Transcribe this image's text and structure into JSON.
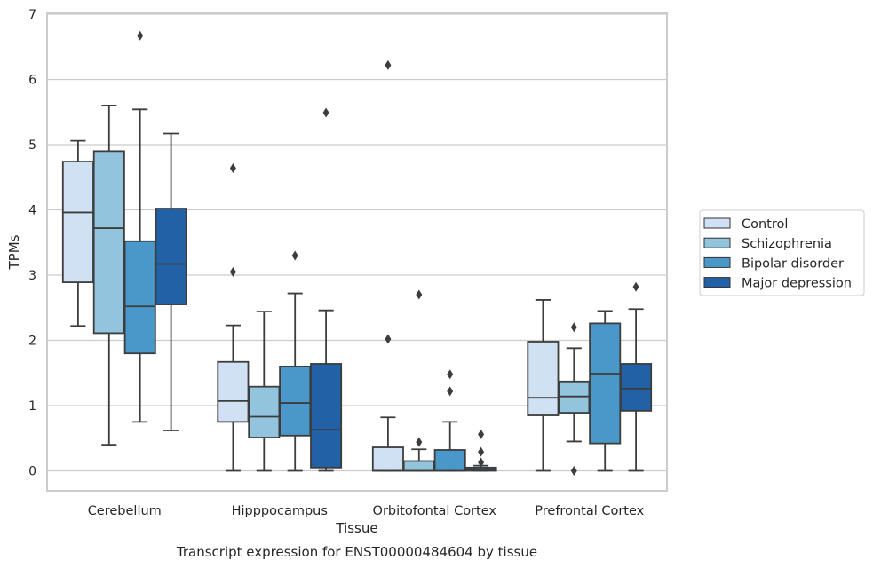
{
  "chart_data": {
    "type": "box",
    "caption": "Transcript expression for ENST00000484604 by tissue",
    "xlabel": "Tissue",
    "ylabel": "TPMs",
    "ylim": [
      -0.3,
      7
    ],
    "yticks": [
      "0",
      "1",
      "2",
      "3",
      "4",
      "5",
      "6",
      "7"
    ],
    "grid": "horizontal",
    "legend_position": "right",
    "categories": [
      "Cerebellum",
      "Hipppocampus",
      "Orbitofontal Cortex",
      "Prefrontal Cortex"
    ],
    "series": [
      {
        "name": "Control",
        "color": "#cfe1f2",
        "boxes": [
          {
            "whisker_low": 2.22,
            "q1": 2.89,
            "median": 3.96,
            "q3": 4.74,
            "whisker_high": 5.06,
            "outliers": []
          },
          {
            "whisker_low": 0.0,
            "q1": 0.75,
            "median": 1.07,
            "q3": 1.67,
            "whisker_high": 2.23,
            "outliers": [
              3.05,
              4.64
            ]
          },
          {
            "whisker_low": 0.0,
            "q1": 0.0,
            "median": 0.0,
            "q3": 0.36,
            "whisker_high": 0.82,
            "outliers": [
              2.02,
              6.22
            ]
          },
          {
            "whisker_low": 0.0,
            "q1": 0.85,
            "median": 1.12,
            "q3": 1.98,
            "whisker_high": 2.62,
            "outliers": []
          }
        ]
      },
      {
        "name": "Schizophrenia",
        "color": "#93c4de",
        "boxes": [
          {
            "whisker_low": 0.4,
            "q1": 2.11,
            "median": 3.72,
            "q3": 4.9,
            "whisker_high": 5.6,
            "outliers": []
          },
          {
            "whisker_low": 0.0,
            "q1": 0.51,
            "median": 0.83,
            "q3": 1.29,
            "whisker_high": 2.44,
            "outliers": []
          },
          {
            "whisker_low": 0.0,
            "q1": 0.0,
            "median": 0.0,
            "q3": 0.15,
            "whisker_high": 0.33,
            "outliers": [
              0.44,
              2.7
            ]
          },
          {
            "whisker_low": 0.45,
            "q1": 0.89,
            "median": 1.14,
            "q3": 1.37,
            "whisker_high": 1.88,
            "outliers": [
              0.0,
              2.2
            ]
          }
        ]
      },
      {
        "name": "Bipolar disorder",
        "color": "#4a98c9",
        "boxes": [
          {
            "whisker_low": 0.75,
            "q1": 1.8,
            "median": 2.52,
            "q3": 3.52,
            "whisker_high": 5.54,
            "outliers": [
              6.67
            ]
          },
          {
            "whisker_low": 0.0,
            "q1": 0.54,
            "median": 1.04,
            "q3": 1.6,
            "whisker_high": 2.72,
            "outliers": [
              3.3
            ]
          },
          {
            "whisker_low": 0.0,
            "q1": 0.0,
            "median": 0.0,
            "q3": 0.32,
            "whisker_high": 0.75,
            "outliers": [
              1.22,
              1.48
            ]
          },
          {
            "whisker_low": 0.0,
            "q1": 0.42,
            "median": 1.49,
            "q3": 2.26,
            "whisker_high": 2.45,
            "outliers": []
          }
        ]
      },
      {
        "name": "Major depression",
        "color": "#2261a6",
        "boxes": [
          {
            "whisker_low": 0.62,
            "q1": 2.55,
            "median": 3.17,
            "q3": 4.02,
            "whisker_high": 5.17,
            "outliers": []
          },
          {
            "whisker_low": 0.0,
            "q1": 0.05,
            "median": 0.63,
            "q3": 1.64,
            "whisker_high": 2.46,
            "outliers": [
              5.49
            ]
          },
          {
            "whisker_low": 0.0,
            "q1": 0.0,
            "median": 0.02,
            "q3": 0.05,
            "whisker_high": 0.08,
            "outliers": [
              0.13,
              0.29,
              0.56
            ]
          },
          {
            "whisker_low": 0.0,
            "q1": 0.92,
            "median": 1.26,
            "q3": 1.64,
            "whisker_high": 2.48,
            "outliers": [
              2.82
            ]
          }
        ]
      }
    ]
  }
}
